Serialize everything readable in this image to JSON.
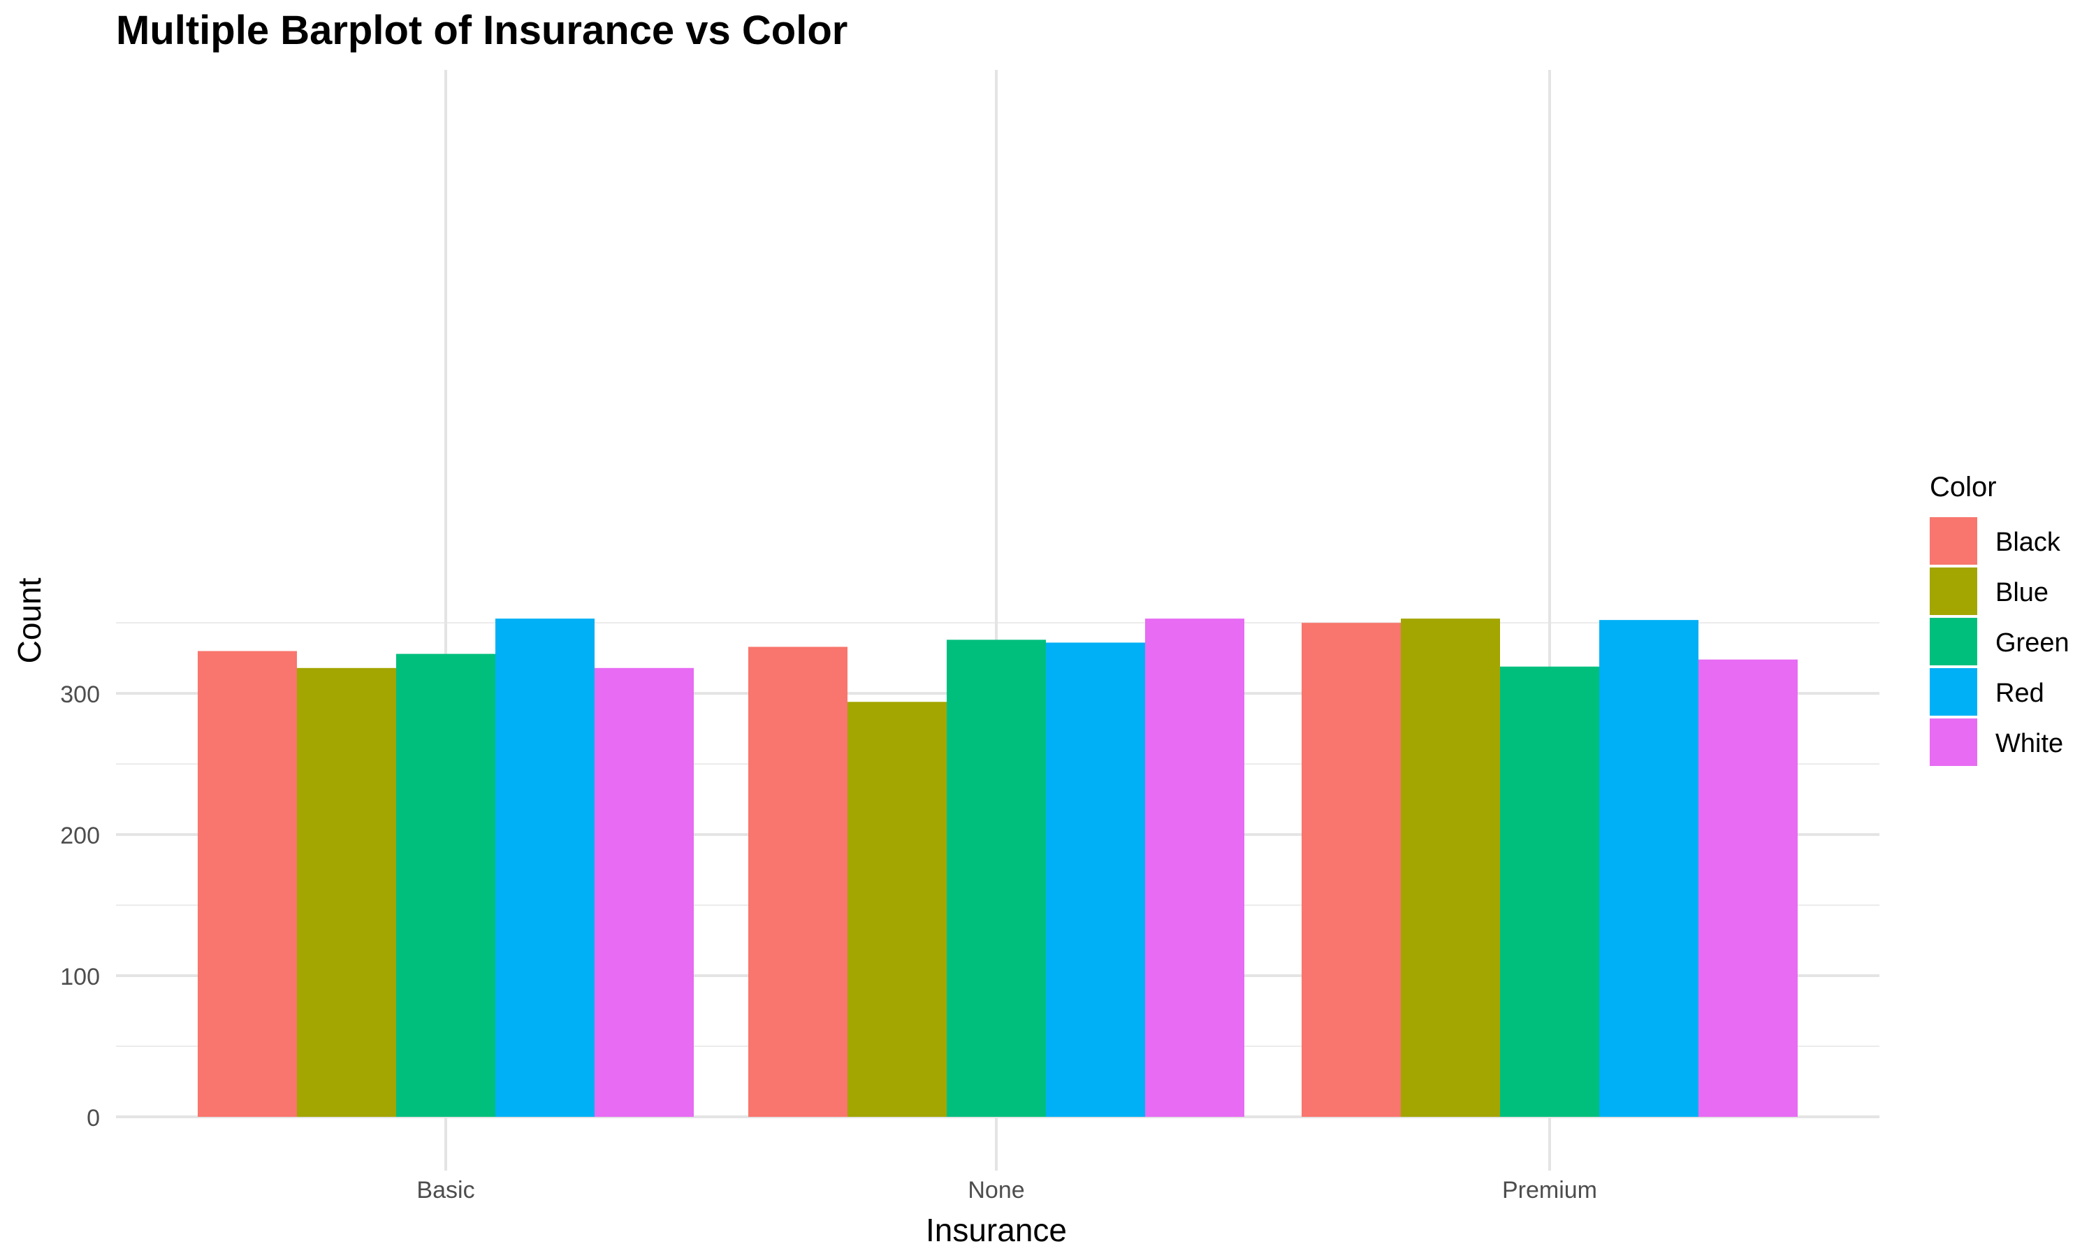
{
  "chart_data": {
    "type": "bar",
    "title": "Multiple Barplot of Insurance vs Color",
    "xlabel": "Insurance",
    "ylabel": "Count",
    "categories": [
      "Basic",
      "None",
      "Premium"
    ],
    "ylim": [
      0,
      360
    ],
    "yticks": [
      0,
      100,
      200,
      300
    ],
    "grid": true,
    "legend": {
      "title": "Color",
      "position": "right"
    },
    "series": [
      {
        "name": "Black",
        "color": "#F8766D",
        "values": [
          330,
          333,
          350
        ]
      },
      {
        "name": "Blue",
        "color": "#A3A500",
        "values": [
          318,
          294,
          353
        ]
      },
      {
        "name": "Green",
        "color": "#00BF7D",
        "values": [
          328,
          338,
          319
        ]
      },
      {
        "name": "Red",
        "color": "#00B0F6",
        "values": [
          353,
          336,
          352
        ]
      },
      {
        "name": "White",
        "color": "#E76BF3",
        "values": [
          318,
          353,
          324
        ]
      }
    ]
  }
}
